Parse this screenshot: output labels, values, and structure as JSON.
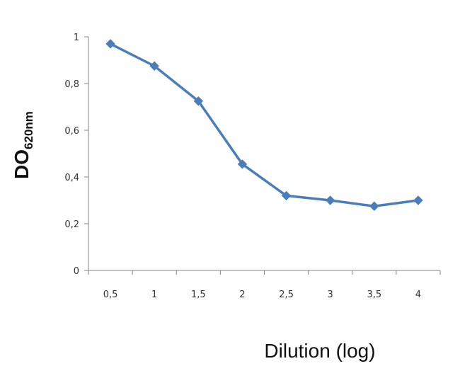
{
  "chart_data": {
    "type": "line",
    "x": [
      0.5,
      1,
      1.5,
      2,
      2.5,
      3,
      3.5,
      4
    ],
    "series": [
      {
        "values": [
          0.97,
          0.875,
          0.725,
          0.455,
          0.32,
          0.3,
          0.275,
          0.3
        ]
      }
    ],
    "x_tick_labels": [
      "0,5",
      "1",
      "1,5",
      "2",
      "2,5",
      "3",
      "3,5",
      "4"
    ],
    "y_ticks": [
      0,
      0.2,
      0.4,
      0.6,
      0.8,
      1
    ],
    "y_tick_labels": [
      "0",
      "0,2",
      "0,4",
      "0,6",
      "0,8",
      "1"
    ],
    "ylim": [
      0,
      1
    ],
    "xlabel": "Dilution (log)",
    "ylabel_main": "DO",
    "ylabel_sub": "620nm",
    "grid": false,
    "legend": "none",
    "line_color": "#4a7ebb"
  }
}
